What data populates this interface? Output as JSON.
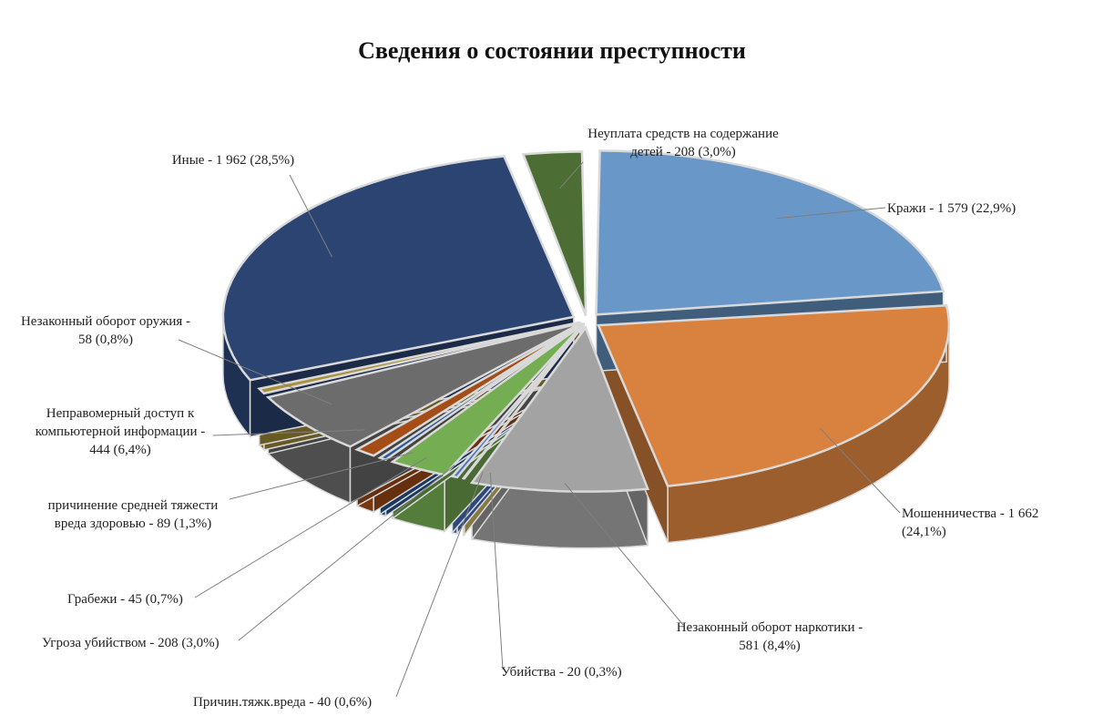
{
  "chart_data": {
    "type": "pie",
    "title": "Сведения о состоянии преступности",
    "three_d": true,
    "slices": [
      {
        "label": "Кражи - 1 579 (22,9%)",
        "value": 1579,
        "percent": 22.9,
        "color": "#6897c8"
      },
      {
        "label": "Мошенничества - 1 662 (24,1%)",
        "value": 1662,
        "percent": 24.1,
        "color": "#d9823f"
      },
      {
        "label": "Незаконный оборот наркотики - 581 (8,4%)",
        "value": 581,
        "percent": 8.4,
        "color": "#a3a3a3"
      },
      {
        "label": "Убийства - 20 (0,3%)",
        "value": 20,
        "percent": 0.3,
        "color": "#d9c36a"
      },
      {
        "label": "Причин.тяжк.вреда - 40 (0,6%)",
        "value": 40,
        "percent": 0.6,
        "color": "#4a74c9"
      },
      {
        "label": "Угроза убийством - 208 (3,0%)",
        "value": 208,
        "percent": 3.0,
        "color": "#75ad52"
      },
      {
        "label": "Грабежи - 45 (0,7%)",
        "value": 45,
        "percent": 0.7,
        "color": "#2a5a98"
      },
      {
        "label": "причинение средней тяжести вреда здоровью - 89 (1,3%)",
        "value": 89,
        "percent": 1.3,
        "color": "#a54d17"
      },
      {
        "label": "Неправомерный доступ к компьютерной информации - 444 (6,4%)",
        "value": 444,
        "percent": 6.4,
        "color": "#6c6c6c"
      },
      {
        "label": "Незаконный оборот оружия - 58 (0,8%)",
        "value": 58,
        "percent": 0.8,
        "color": "#a8913a"
      },
      {
        "label": "Иные - 1 962 (28,5%)",
        "value": 1962,
        "percent": 28.5,
        "color": "#2b4472"
      },
      {
        "label": "Неуплата средств на содержание детей - 208 (3,0%)",
        "value": 208,
        "percent": 3.0,
        "color": "#4c6d33"
      }
    ],
    "label_lines": [
      [
        "Кражи - 1 579 (22,9%)"
      ],
      [
        "Мошенничества - 1 662",
        "(24,1%)"
      ],
      [
        "Незаконный оборот наркотики -",
        "581 (8,4%)"
      ],
      [
        "Убийства - 20 (0,3%)"
      ],
      [
        "Причин.тяжк.вреда - 40 (0,6%)"
      ],
      [
        "Угроза убийством - 208 (3,0%)"
      ],
      [
        "Грабежи - 45 (0,7%)"
      ],
      [
        "причинение средней тяжести",
        "вреда здоровью - 89 (1,3%)"
      ],
      [
        "Неправомерный доступ к",
        "компьютерной информации -",
        "444 (6,4%)"
      ],
      [
        "Незаконный оборот оружия -",
        "58 (0,8%)"
      ],
      [
        "Иные - 1 962 (28,5%)"
      ],
      [
        "Неуплата средств на содержание",
        "детей - 208 (3,0%)"
      ]
    ],
    "legend": "none"
  }
}
